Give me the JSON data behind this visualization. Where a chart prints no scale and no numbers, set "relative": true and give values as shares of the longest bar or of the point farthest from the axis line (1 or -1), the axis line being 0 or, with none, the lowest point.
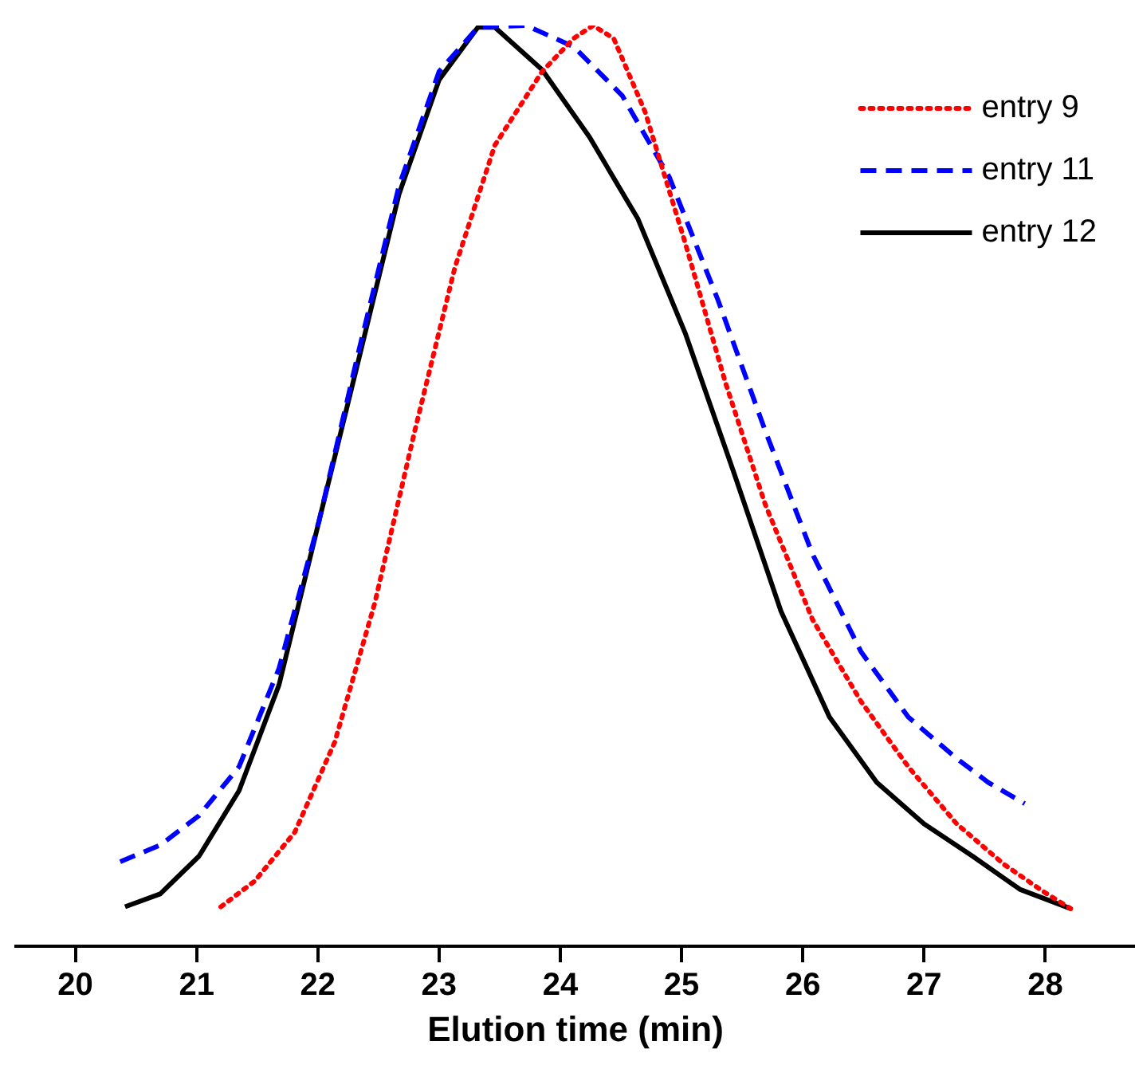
{
  "chart_data": {
    "type": "line",
    "relative": true,
    "xlabel": "Elution time (min)",
    "xlim": [
      19.51,
      28.74
    ],
    "xticks": [
      20,
      21,
      22,
      23,
      24,
      25,
      26,
      27,
      28
    ],
    "grid": false,
    "legend": "top right",
    "marker": "none",
    "tick_labels": "x",
    "series": [
      {
        "name": "entry 9",
        "color": "#ff0000",
        "line_style": "dotted",
        "x": [
          21.2,
          21.48,
          21.81,
          22.14,
          22.47,
          22.8,
          23.13,
          23.46,
          23.85,
          24.11,
          24.27,
          24.44,
          24.7,
          25.03,
          25.36,
          25.69,
          26.08,
          26.48,
          26.87,
          27.27,
          27.66,
          27.99,
          28.21
        ],
        "values": [
          0.043,
          0.071,
          0.124,
          0.222,
          0.373,
          0.56,
          0.737,
          0.87,
          0.95,
          0.986,
          1.0,
          0.986,
          0.906,
          0.764,
          0.613,
          0.48,
          0.355,
          0.266,
          0.195,
          0.133,
          0.089,
          0.059,
          0.041
        ]
      },
      {
        "name": "entry 11",
        "color": "#0000ff",
        "line_style": "dashed",
        "x": [
          20.37,
          20.7,
          21.02,
          21.35,
          21.68,
          22.01,
          22.34,
          22.67,
          23.0,
          23.32,
          23.72,
          24.11,
          24.51,
          24.9,
          25.3,
          25.69,
          26.08,
          26.48,
          26.87,
          27.27,
          27.53,
          27.83
        ],
        "values": [
          0.092,
          0.11,
          0.142,
          0.195,
          0.302,
          0.462,
          0.648,
          0.826,
          0.95,
          0.998,
          1.0,
          0.977,
          0.924,
          0.835,
          0.702,
          0.56,
          0.426,
          0.32,
          0.249,
          0.204,
          0.178,
          0.155
        ]
      },
      {
        "name": "entry 12",
        "color": "#000000",
        "line_style": "solid",
        "x": [
          20.41,
          20.7,
          21.02,
          21.35,
          21.68,
          22.01,
          22.34,
          22.67,
          23.0,
          23.32,
          23.46,
          23.85,
          24.24,
          24.64,
          25.03,
          25.43,
          25.82,
          26.22,
          26.61,
          27.0,
          27.4,
          27.79,
          28.21
        ],
        "values": [
          0.043,
          0.057,
          0.098,
          0.169,
          0.284,
          0.462,
          0.639,
          0.817,
          0.941,
          0.998,
          0.998,
          0.952,
          0.879,
          0.79,
          0.666,
          0.515,
          0.364,
          0.249,
          0.178,
          0.133,
          0.098,
          0.062,
          0.041
        ]
      }
    ]
  }
}
